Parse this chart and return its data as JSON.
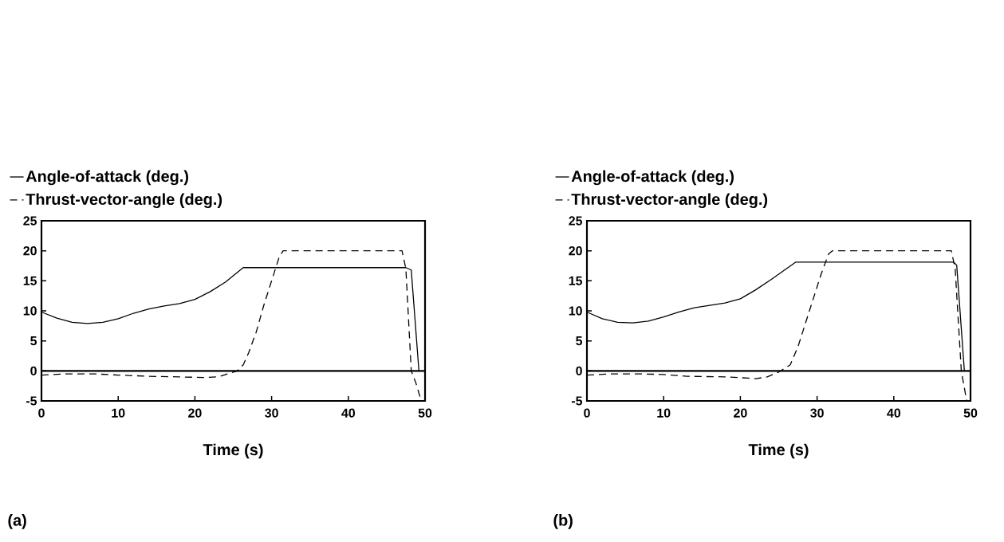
{
  "chart_data": [
    {
      "type": "line",
      "xlabel": "Time (s)",
      "xlim": [
        0,
        50
      ],
      "ylim": [
        -5,
        25
      ],
      "xticks": [
        0,
        10,
        20,
        30,
        40,
        50
      ],
      "yticks": [
        -5,
        0,
        5,
        10,
        15,
        20,
        25
      ],
      "legend": "top",
      "grid": false,
      "marker": "none",
      "ref_lines": [
        {
          "axis": "y",
          "value": 0,
          "color": "#000000",
          "line_style": "solid"
        }
      ],
      "annotations": [
        "(a)"
      ],
      "series": [
        {
          "name": "Angle-of-attack (deg.)",
          "color": "#000000",
          "line_style": "solid",
          "x": [
            0,
            2,
            4,
            6,
            8,
            10,
            12,
            14,
            16,
            18,
            20,
            22,
            24,
            26.3,
            47.5,
            48.2,
            49.2
          ],
          "values": [
            9.8,
            8.8,
            8.1,
            7.9,
            8.1,
            8.7,
            9.6,
            10.3,
            10.8,
            11.2,
            11.9,
            13.2,
            14.8,
            17.2,
            17.2,
            16.8,
            0
          ]
        },
        {
          "name": "Thrust-vector-angle (deg.)",
          "color": "#000000",
          "line_style": "dashed",
          "x": [
            0,
            3,
            7,
            10,
            14,
            18,
            21,
            23,
            24,
            25.5,
            26.3,
            27,
            28,
            29,
            30,
            31,
            31.5,
            47,
            47.5,
            48.2,
            48.8,
            49.5
          ],
          "values": [
            -0.7,
            -0.5,
            -0.5,
            -0.7,
            -0.9,
            -1.0,
            -1.1,
            -1.0,
            -0.6,
            0,
            1,
            3,
            6.5,
            11,
            15,
            19,
            20,
            20,
            17,
            0,
            -2,
            -5
          ]
        }
      ]
    },
    {
      "type": "line",
      "xlabel": "Time (s)",
      "xlim": [
        0,
        50
      ],
      "ylim": [
        -5,
        25
      ],
      "xticks": [
        0,
        10,
        20,
        30,
        40,
        50
      ],
      "yticks": [
        -5,
        0,
        5,
        10,
        15,
        20,
        25
      ],
      "legend": "top",
      "grid": false,
      "marker": "none",
      "ref_lines": [
        {
          "axis": "y",
          "value": 0,
          "color": "#000000",
          "line_style": "solid"
        }
      ],
      "annotations": [
        "(b)"
      ],
      "series": [
        {
          "name": "Angle-of-attack (deg.)",
          "color": "#000000",
          "line_style": "solid",
          "x": [
            0,
            2,
            4,
            6,
            8,
            10,
            12,
            14,
            16,
            18,
            20,
            22,
            24,
            27.2,
            47.8,
            48.2,
            49.2
          ],
          "values": [
            9.8,
            8.7,
            8.1,
            8.0,
            8.3,
            9.0,
            9.8,
            10.5,
            10.9,
            11.3,
            12.0,
            13.5,
            15.2,
            18.1,
            18.1,
            17.6,
            0
          ]
        },
        {
          "name": "Thrust-vector-angle (deg.)",
          "color": "#000000",
          "line_style": "dashed",
          "x": [
            0,
            3,
            7,
            10,
            13,
            18,
            21,
            22,
            23.5,
            25,
            26.5,
            27.5,
            28.5,
            29.5,
            30.5,
            31.5,
            32,
            47.5,
            48,
            48.8,
            49.5
          ],
          "values": [
            -0.7,
            -0.5,
            -0.5,
            -0.6,
            -0.9,
            -1.0,
            -1.2,
            -1.3,
            -1.0,
            -0.2,
            1,
            4,
            8,
            12,
            16,
            19.5,
            20,
            20,
            17,
            0,
            -5
          ]
        }
      ]
    }
  ]
}
